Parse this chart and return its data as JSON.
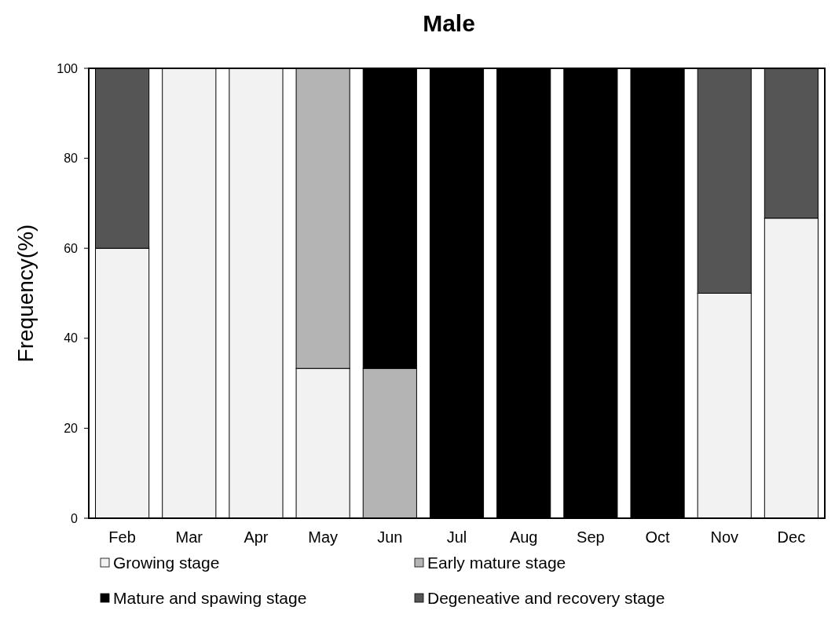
{
  "chart_data": {
    "type": "bar",
    "title": "Male",
    "ylabel": "Frequency(%)",
    "stacked": true,
    "categories": [
      "Feb",
      "Mar",
      "Apr",
      "May",
      "Jun",
      "Jul",
      "Aug",
      "Sep",
      "Oct",
      "Nov",
      "Dec"
    ],
    "series": [
      {
        "name": "Growing stage",
        "color": "#f2f2f2",
        "values": [
          60,
          100,
          100,
          33.3,
          0,
          0,
          0,
          0,
          0,
          50,
          66.7
        ]
      },
      {
        "name": "Early mature stage",
        "color": "#b4b4b4",
        "values": [
          0,
          0,
          0,
          66.7,
          33.3,
          0,
          0,
          0,
          0,
          0,
          0
        ]
      },
      {
        "name": "Mature and spawing stage",
        "color": "#000000",
        "values": [
          0,
          0,
          0,
          0,
          66.7,
          100,
          100,
          100,
          100,
          0,
          0
        ]
      },
      {
        "name": "Degeneative and recovery stage",
        "color": "#555555",
        "values": [
          40,
          0,
          0,
          0,
          0,
          0,
          0,
          0,
          0,
          50,
          33.3
        ]
      }
    ],
    "ylim": [
      0,
      100
    ],
    "yticks": [
      0,
      20,
      40,
      60,
      80,
      100
    ],
    "grid": false,
    "legend": "bottom"
  }
}
